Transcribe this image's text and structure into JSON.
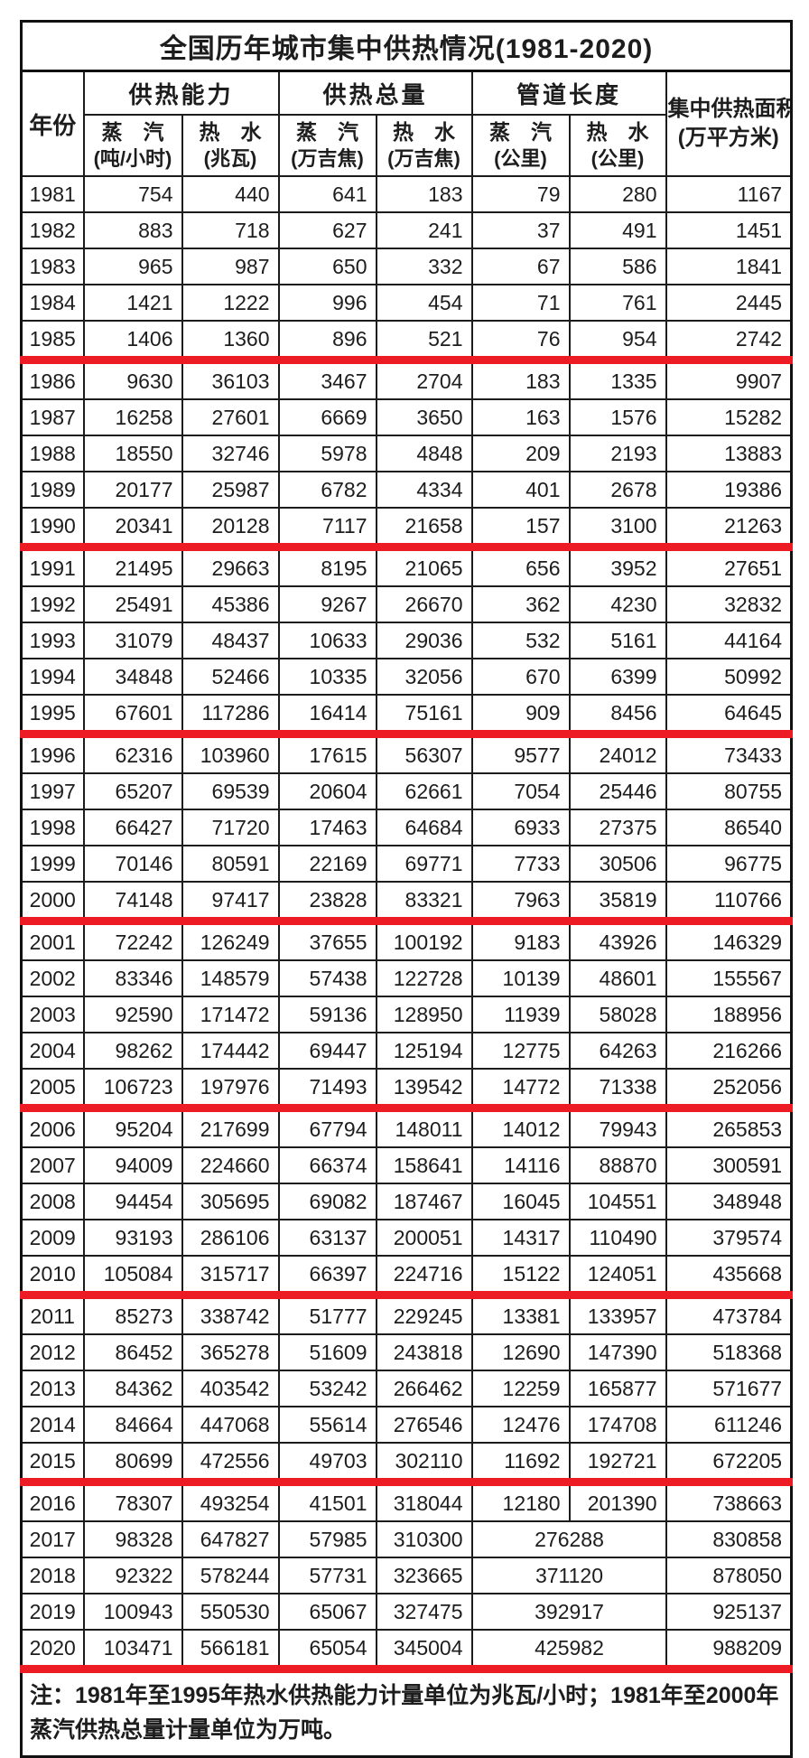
{
  "title": "全国历年城市集中供热情况(1981-2020)",
  "columns": {
    "year": "年份",
    "groups": [
      {
        "label": "供热能力",
        "subs": [
          {
            "name": "蒸　汽",
            "unit": "(吨/小时)"
          },
          {
            "name": "热　水",
            "unit": "(兆瓦)"
          }
        ]
      },
      {
        "label": "供热总量",
        "subs": [
          {
            "name": "蒸　汽",
            "unit": "(万吉焦)"
          },
          {
            "name": "热　水",
            "unit": "(万吉焦)"
          }
        ]
      },
      {
        "label": "管道长度",
        "subs": [
          {
            "name": "蒸　汽",
            "unit": "(公里)"
          },
          {
            "name": "热　水",
            "unit": "(公里)"
          }
        ]
      }
    ],
    "area": {
      "line1": "集中供热面积",
      "line2": "(万平方米)"
    }
  },
  "rows": [
    {
      "year": "1981",
      "cells": [
        "754",
        "440",
        "641",
        "183",
        "79",
        "280",
        "1167"
      ]
    },
    {
      "year": "1982",
      "cells": [
        "883",
        "718",
        "627",
        "241",
        "37",
        "491",
        "1451"
      ]
    },
    {
      "year": "1983",
      "cells": [
        "965",
        "987",
        "650",
        "332",
        "67",
        "586",
        "1841"
      ]
    },
    {
      "year": "1984",
      "cells": [
        "1421",
        "1222",
        "996",
        "454",
        "71",
        "761",
        "2445"
      ]
    },
    {
      "year": "1985",
      "cells": [
        "1406",
        "1360",
        "896",
        "521",
        "76",
        "954",
        "2742"
      ],
      "divider": true
    },
    {
      "year": "1986",
      "cells": [
        "9630",
        "36103",
        "3467",
        "2704",
        "183",
        "1335",
        "9907"
      ]
    },
    {
      "year": "1987",
      "cells": [
        "16258",
        "27601",
        "6669",
        "3650",
        "163",
        "1576",
        "15282"
      ]
    },
    {
      "year": "1988",
      "cells": [
        "18550",
        "32746",
        "5978",
        "4848",
        "209",
        "2193",
        "13883"
      ]
    },
    {
      "year": "1989",
      "cells": [
        "20177",
        "25987",
        "6782",
        "4334",
        "401",
        "2678",
        "19386"
      ]
    },
    {
      "year": "1990",
      "cells": [
        "20341",
        "20128",
        "7117",
        "21658",
        "157",
        "3100",
        "21263"
      ],
      "divider": true
    },
    {
      "year": "1991",
      "cells": [
        "21495",
        "29663",
        "8195",
        "21065",
        "656",
        "3952",
        "27651"
      ]
    },
    {
      "year": "1992",
      "cells": [
        "25491",
        "45386",
        "9267",
        "26670",
        "362",
        "4230",
        "32832"
      ]
    },
    {
      "year": "1993",
      "cells": [
        "31079",
        "48437",
        "10633",
        "29036",
        "532",
        "5161",
        "44164"
      ]
    },
    {
      "year": "1994",
      "cells": [
        "34848",
        "52466",
        "10335",
        "32056",
        "670",
        "6399",
        "50992"
      ]
    },
    {
      "year": "1995",
      "cells": [
        "67601",
        "117286",
        "16414",
        "75161",
        "909",
        "8456",
        "64645"
      ],
      "divider": true
    },
    {
      "year": "1996",
      "cells": [
        "62316",
        "103960",
        "17615",
        "56307",
        "9577",
        "24012",
        "73433"
      ]
    },
    {
      "year": "1997",
      "cells": [
        "65207",
        "69539",
        "20604",
        "62661",
        "7054",
        "25446",
        "80755"
      ]
    },
    {
      "year": "1998",
      "cells": [
        "66427",
        "71720",
        "17463",
        "64684",
        "6933",
        "27375",
        "86540"
      ]
    },
    {
      "year": "1999",
      "cells": [
        "70146",
        "80591",
        "22169",
        "69771",
        "7733",
        "30506",
        "96775"
      ]
    },
    {
      "year": "2000",
      "cells": [
        "74148",
        "97417",
        "23828",
        "83321",
        "7963",
        "35819",
        "110766"
      ],
      "divider": true
    },
    {
      "year": "2001",
      "cells": [
        "72242",
        "126249",
        "37655",
        "100192",
        "9183",
        "43926",
        "146329"
      ]
    },
    {
      "year": "2002",
      "cells": [
        "83346",
        "148579",
        "57438",
        "122728",
        "10139",
        "48601",
        "155567"
      ]
    },
    {
      "year": "2003",
      "cells": [
        "92590",
        "171472",
        "59136",
        "128950",
        "11939",
        "58028",
        "188956"
      ]
    },
    {
      "year": "2004",
      "cells": [
        "98262",
        "174442",
        "69447",
        "125194",
        "12775",
        "64263",
        "216266"
      ]
    },
    {
      "year": "2005",
      "cells": [
        "106723",
        "197976",
        "71493",
        "139542",
        "14772",
        "71338",
        "252056"
      ],
      "divider": true
    },
    {
      "year": "2006",
      "cells": [
        "95204",
        "217699",
        "67794",
        "148011",
        "14012",
        "79943",
        "265853"
      ]
    },
    {
      "year": "2007",
      "cells": [
        "94009",
        "224660",
        "66374",
        "158641",
        "14116",
        "88870",
        "300591"
      ]
    },
    {
      "year": "2008",
      "cells": [
        "94454",
        "305695",
        "69082",
        "187467",
        "16045",
        "104551",
        "348948"
      ]
    },
    {
      "year": "2009",
      "cells": [
        "93193",
        "286106",
        "63137",
        "200051",
        "14317",
        "110490",
        "379574"
      ]
    },
    {
      "year": "2010",
      "cells": [
        "105084",
        "315717",
        "66397",
        "224716",
        "15122",
        "124051",
        "435668"
      ],
      "divider": true
    },
    {
      "year": "2011",
      "cells": [
        "85273",
        "338742",
        "51777",
        "229245",
        "13381",
        "133957",
        "473784"
      ]
    },
    {
      "year": "2012",
      "cells": [
        "86452",
        "365278",
        "51609",
        "243818",
        "12690",
        "147390",
        "518368"
      ]
    },
    {
      "year": "2013",
      "cells": [
        "84362",
        "403542",
        "53242",
        "266462",
        "12259",
        "165877",
        "571677"
      ]
    },
    {
      "year": "2014",
      "cells": [
        "84664",
        "447068",
        "55614",
        "276546",
        "12476",
        "174708",
        "611246"
      ]
    },
    {
      "year": "2015",
      "cells": [
        "80699",
        "472556",
        "49703",
        "302110",
        "11692",
        "192721",
        "672205"
      ],
      "divider": true
    },
    {
      "year": "2016",
      "cells": [
        "78307",
        "493254",
        "41501",
        "318044",
        "12180",
        "201390",
        "738663"
      ]
    },
    {
      "year": "2017",
      "cells": [
        "98328",
        "647827",
        "57985",
        "310300",
        "276288",
        "830858"
      ],
      "merged_pipe": true
    },
    {
      "year": "2018",
      "cells": [
        "92322",
        "578244",
        "57731",
        "323665",
        "371120",
        "878050"
      ],
      "merged_pipe": true
    },
    {
      "year": "2019",
      "cells": [
        "100943",
        "550530",
        "65067",
        "327475",
        "392917",
        "925137"
      ],
      "merged_pipe": true
    },
    {
      "year": "2020",
      "cells": [
        "103471",
        "566181",
        "65054",
        "345004",
        "425982",
        "988209"
      ],
      "merged_pipe": true,
      "divider": true
    }
  ],
  "note": "注：1981年至1995年热水供热能力计量单位为兆瓦/小时；1981年至2000年蒸汽供热总量计量单位为万吨。",
  "colors": {
    "red_divider": "#ed1c24",
    "border": "#1c1c1c",
    "text": "#1d1d1d"
  }
}
